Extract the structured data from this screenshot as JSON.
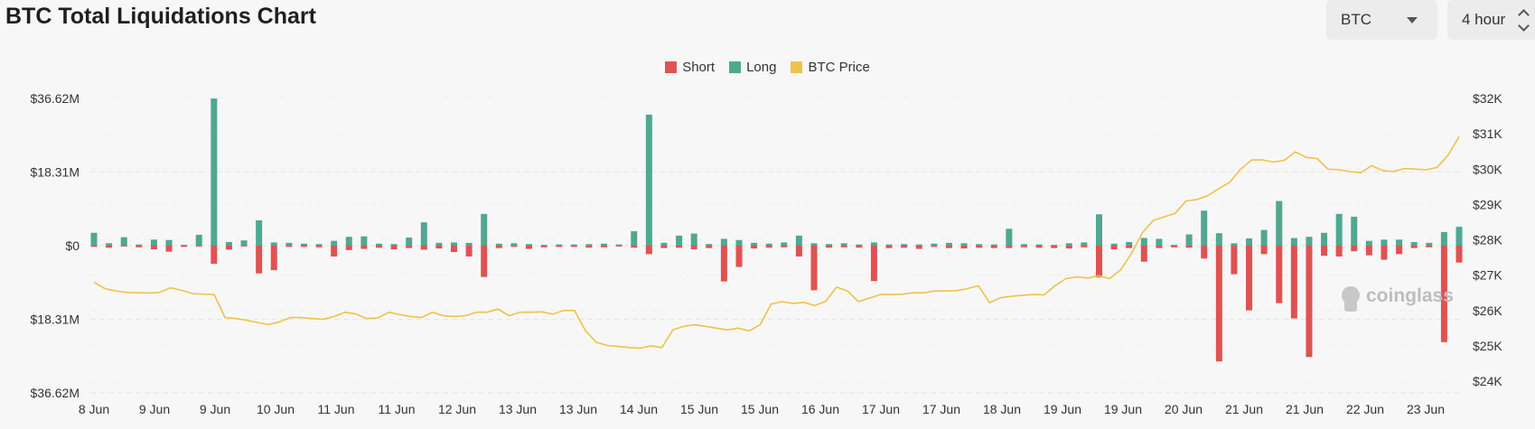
{
  "header": {
    "title": "BTC Total Liquidations Chart",
    "coin_select": "BTC",
    "interval_select": "4 hour"
  },
  "watermark": "coinglass",
  "colors": {
    "short": "#e05252",
    "long": "#4fa88f",
    "price": "#eec24a",
    "grid": "#e6e6e6"
  },
  "chart_data": {
    "type": "bar",
    "legend": [
      "Short",
      "Long",
      "BTC Price"
    ],
    "legend_position": "top-center",
    "grid": true,
    "y_left": {
      "ticks": [
        "$36.62M",
        "$18.31M",
        "$0",
        "$18.31M",
        "$36.62M"
      ],
      "range_millions": [
        -36.62,
        36.62
      ]
    },
    "y_right": {
      "ticks": [
        "$32K",
        "$31K",
        "$30K",
        "$29K",
        "$28K",
        "$27K",
        "$26K",
        "$25K",
        "$24K"
      ],
      "range_usd": [
        24000,
        32000
      ]
    },
    "x_tick_labels": [
      "8 Jun",
      "9 Jun",
      "9 Jun",
      "10 Jun",
      "11 Jun",
      "11 Jun",
      "12 Jun",
      "13 Jun",
      "13 Jun",
      "14 Jun",
      "15 Jun",
      "15 Jun",
      "16 Jun",
      "17 Jun",
      "17 Jun",
      "18 Jun",
      "19 Jun",
      "19 Jun",
      "20 Jun",
      "21 Jun",
      "21 Jun",
      "22 Jun",
      "23 Jun"
    ],
    "series": [
      {
        "name": "Long",
        "unit": "USD millions",
        "values": [
          3.2,
          0.6,
          2.1,
          0.3,
          1.5,
          1.4,
          0.2,
          2.7,
          36.6,
          0.9,
          1.3,
          6.3,
          0.8,
          0.7,
          0.5,
          0.4,
          1.2,
          2.2,
          2.3,
          0.5,
          0.4,
          2.0,
          5.8,
          0.7,
          0.8,
          0.7,
          7.9,
          0.5,
          0.6,
          0.4,
          0.2,
          0.3,
          0.3,
          0.4,
          0.5,
          0.3,
          3.6,
          32.6,
          0.7,
          2.5,
          3.0,
          0.4,
          1.7,
          1.4,
          0.7,
          0.5,
          0.8,
          2.5,
          0.6,
          0.4,
          0.6,
          0.3,
          0.8,
          0.3,
          0.4,
          0.3,
          0.5,
          0.7,
          0.6,
          0.4,
          0.3,
          4.2,
          0.4,
          0.3,
          0.2,
          0.6,
          0.8,
          7.8,
          0.5,
          0.9,
          1.9,
          1.7,
          0.2,
          2.8,
          8.7,
          3.1,
          0.6,
          1.8,
          3.9,
          11.1,
          1.9,
          2.2,
          3.2,
          7.9,
          7.2,
          1.2,
          1.5,
          1.5,
          0.9,
          0.7,
          3.4,
          4.7
        ],
        "short": false
      },
      {
        "name": "Short",
        "unit": "USD millions",
        "values": [
          0.3,
          0.5,
          0.2,
          0.4,
          0.9,
          1.5,
          0.3,
          0.2,
          4.5,
          1.0,
          0.2,
          6.9,
          6.1,
          0.3,
          0.3,
          0.4,
          2.7,
          1.1,
          0.8,
          0.5,
          0.9,
          0.6,
          1.0,
          0.7,
          1.6,
          2.7,
          7.8,
          0.6,
          0.3,
          0.8,
          0.4,
          0.3,
          0.3,
          0.5,
          0.4,
          0.2,
          0.5,
          2.1,
          0.6,
          0.5,
          0.9,
          0.6,
          8.9,
          5.3,
          0.7,
          0.5,
          0.4,
          2.7,
          11.1,
          0.5,
          0.4,
          0.5,
          8.8,
          0.6,
          0.5,
          0.8,
          0.3,
          0.6,
          0.7,
          0.5,
          0.6,
          0.6,
          0.4,
          0.5,
          0.6,
          0.7,
          0.4,
          7.9,
          0.9,
          0.6,
          4.0,
          0.6,
          0.4,
          0.5,
          3.2,
          28.8,
          7.1,
          16.1,
          2.1,
          14.3,
          18.1,
          27.7,
          2.5,
          2.7,
          1.4,
          2.4,
          3.5,
          2.1,
          0.6,
          0.4,
          24.0,
          4.2
        ],
        "short": true
      },
      {
        "name": "BTC Price",
        "unit": "USD",
        "values": [
          26800,
          26620,
          26550,
          26510,
          26500,
          26495,
          26510,
          26640,
          26570,
          26480,
          26460,
          26450,
          25800,
          25770,
          25720,
          25660,
          25600,
          25680,
          25800,
          25800,
          25770,
          25750,
          25830,
          25950,
          25900,
          25770,
          25790,
          25950,
          25880,
          25830,
          25800,
          25950,
          25850,
          25830,
          25850,
          25950,
          25950,
          26040,
          25850,
          25950,
          25950,
          25960,
          25900,
          26000,
          26000,
          25430,
          25100,
          25010,
          24980,
          24950,
          24930,
          25000,
          24950,
          25450,
          25550,
          25600,
          25550,
          25500,
          25450,
          25500,
          25420,
          25600,
          26180,
          26250,
          26200,
          26230,
          26140,
          26260,
          26660,
          26550,
          26250,
          26350,
          26450,
          26450,
          26460,
          26500,
          26500,
          26550,
          26550,
          26560,
          26620,
          26700,
          26220,
          26360,
          26400,
          26430,
          26450,
          26440,
          26700,
          26900,
          26950,
          26920,
          26980,
          26900,
          27150,
          27610,
          28200,
          28550,
          28650,
          28750,
          29100,
          29140,
          29250,
          29450,
          29630,
          30000,
          30260,
          30260,
          30200,
          30250,
          30490,
          30330,
          30300,
          30000,
          29980,
          29930,
          29900,
          30100,
          29960,
          29930,
          30020,
          30000,
          29980,
          30050,
          30400,
          30920
        ]
      }
    ]
  }
}
